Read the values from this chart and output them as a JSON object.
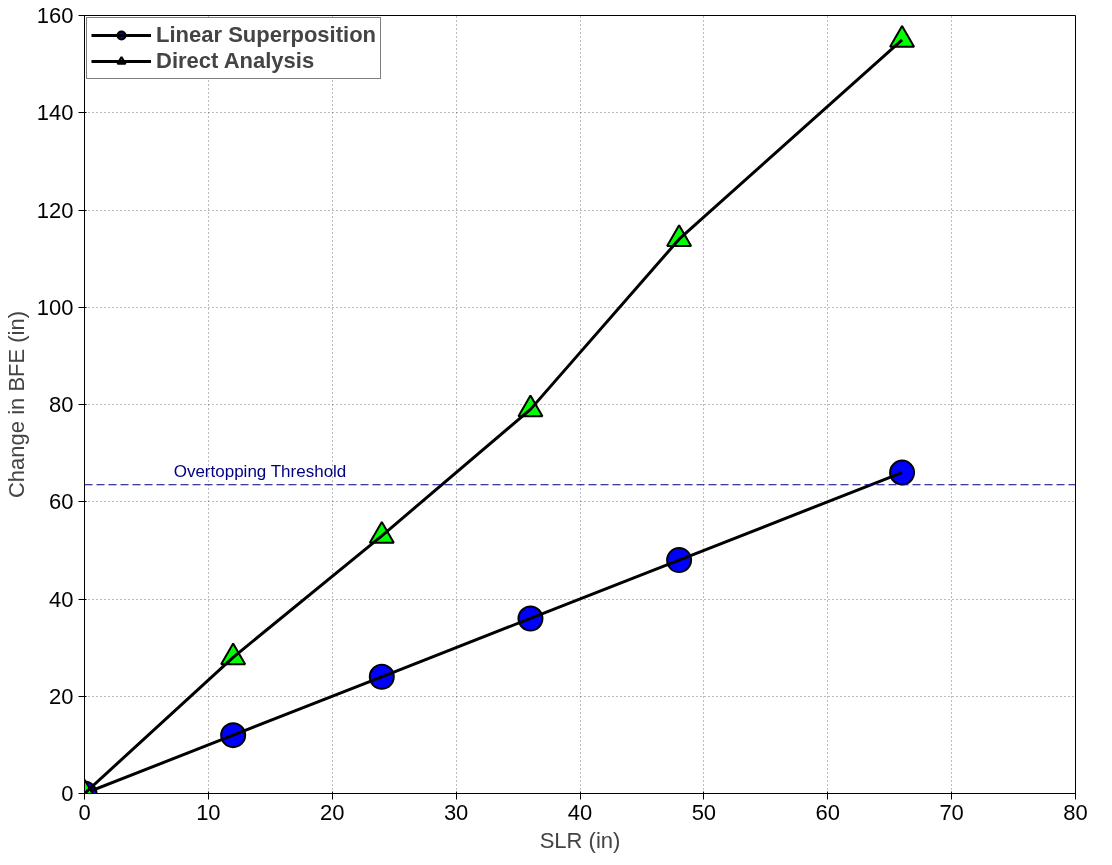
{
  "chart_data": {
    "type": "line",
    "xlabel": "SLR (in)",
    "ylabel": "Change in BFE (in)",
    "x": [
      0,
      12,
      24,
      36,
      48,
      66
    ],
    "series": [
      {
        "name": "Linear Superposition",
        "color": "#0000ff",
        "marker": "circle",
        "values": [
          0,
          12,
          24,
          36,
          48,
          66
        ]
      },
      {
        "name": "Direct Analysis",
        "color": "#00ff00",
        "marker": "triangle",
        "values": [
          0,
          28,
          53,
          79,
          114,
          155
        ]
      }
    ],
    "xlim": [
      0,
      80
    ],
    "xticks": [
      0,
      10,
      20,
      30,
      40,
      50,
      60,
      70,
      80
    ],
    "ylim": [
      0,
      160
    ],
    "yticks": [
      0,
      20,
      40,
      60,
      80,
      100,
      120,
      140,
      160
    ],
    "ref_lines": [
      {
        "axis": "y",
        "value": 63.5,
        "label": "Overtopping Threshold",
        "color": "#000080",
        "line_style": "dashed"
      }
    ],
    "grid": true,
    "legend": "top left",
    "line_style": "solid"
  }
}
